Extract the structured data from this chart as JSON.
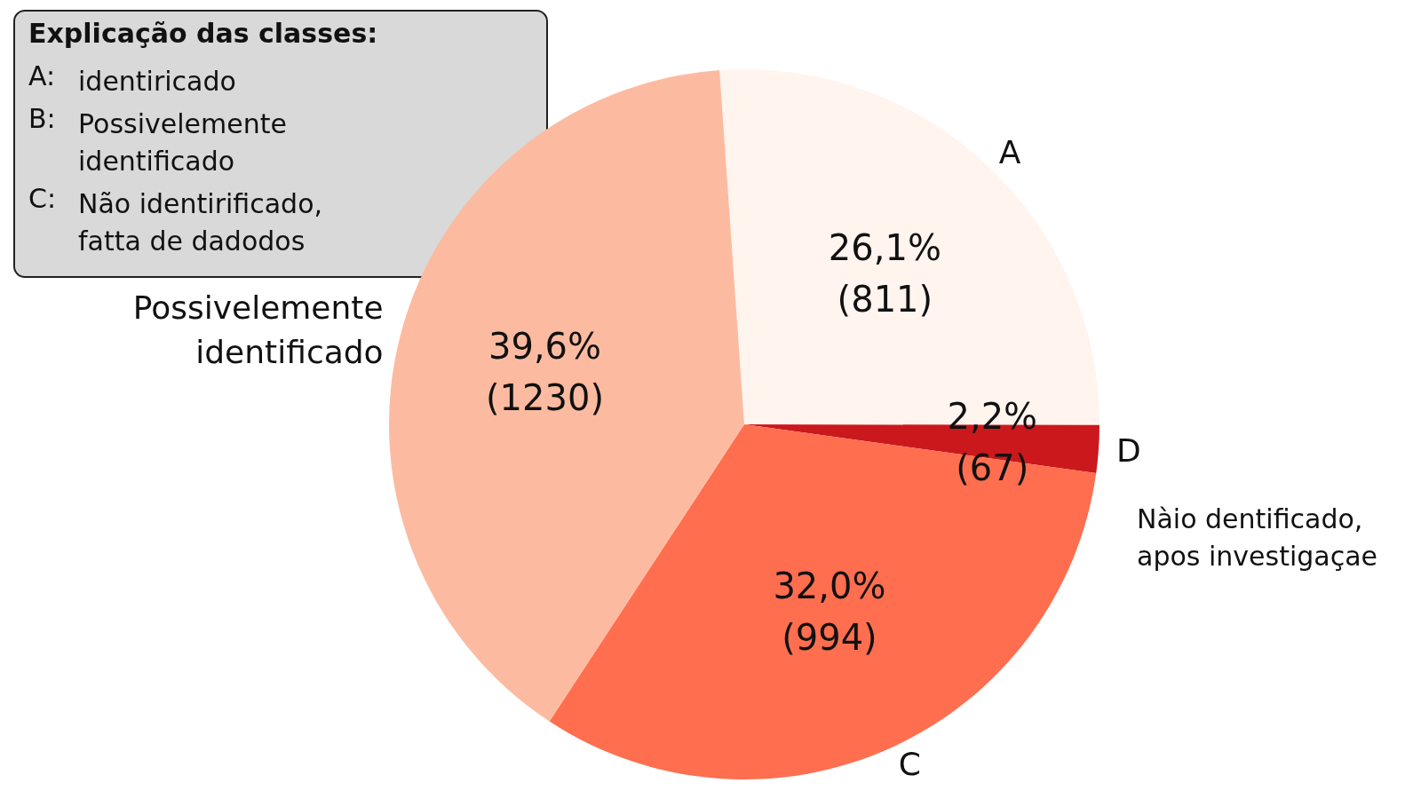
{
  "chart_data": {
    "type": "pie",
    "legend_title": "Explicação das classes:",
    "categories": [
      "A",
      "D",
      "C",
      "Possivelemente\nidentificado"
    ],
    "values": [
      811,
      67,
      994,
      1230
    ],
    "colors": [
      "#fff4ee",
      "#cb181d",
      "#fe6e4f",
      "#fcbba1"
    ],
    "value_labels": [
      "26,1%\n(811)",
      "2,2%\n(67)",
      "32,0%\n(994)",
      "39,6%\n(1230)"
    ],
    "annotations": [
      "A: identiricado",
      "B: Possivelemente\nidentificado",
      "C: Não identirificado,\nfatta de dadodos",
      "Nàio dentificado,\napos investigaçae"
    ]
  }
}
